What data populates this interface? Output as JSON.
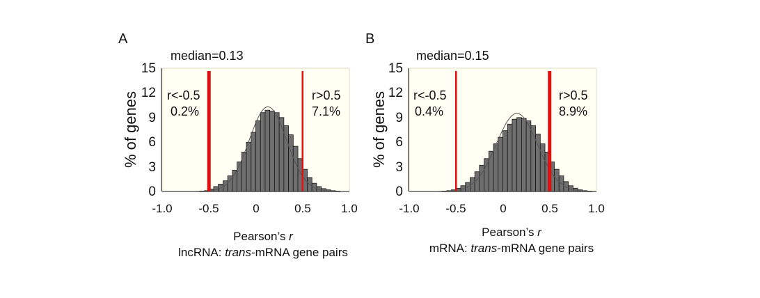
{
  "chart_data": [
    {
      "type": "bar",
      "panel_label": "A",
      "annotation": "median=0.13",
      "xlabel": "Pearson’s r",
      "xlabel_parts": [
        "Pearson’s ",
        "r"
      ],
      "subtitle_parts": [
        "lncRNA: ",
        "trans",
        "-mRNA gene pairs"
      ],
      "ylabel": "% of genes",
      "xlim": [
        -1.0,
        1.0
      ],
      "ylim": [
        0,
        15
      ],
      "xticks": [
        "-1.0",
        "-0.5",
        "0",
        "0.5",
        "1.0"
      ],
      "yticks": [
        "0",
        "3",
        "6",
        "9",
        "12",
        "15"
      ],
      "bin_width": 0.05,
      "bin_starts": [
        -0.95,
        -0.9,
        -0.85,
        -0.8,
        -0.75,
        -0.7,
        -0.65,
        -0.6,
        -0.55,
        -0.5,
        -0.45,
        -0.4,
        -0.35,
        -0.3,
        -0.25,
        -0.2,
        -0.15,
        -0.1,
        -0.05,
        0.0,
        0.05,
        0.1,
        0.15,
        0.2,
        0.25,
        0.3,
        0.35,
        0.4,
        0.45,
        0.5,
        0.55,
        0.6,
        0.65,
        0.7,
        0.75,
        0.8,
        0.85,
        0.9
      ],
      "values": [
        0.0,
        0.0,
        0.0,
        0.0,
        0.0,
        0.0,
        0.0,
        0.05,
        0.1,
        0.3,
        0.6,
        0.9,
        1.3,
        1.9,
        2.6,
        3.6,
        4.8,
        6.0,
        7.2,
        8.6,
        9.6,
        9.9,
        9.8,
        9.6,
        9.0,
        8.0,
        6.9,
        5.5,
        4.0,
        2.7,
        1.7,
        1.0,
        0.6,
        0.35,
        0.2,
        0.1,
        0.05,
        0.0
      ],
      "fit_curve": {
        "mean": 0.13,
        "sd": 0.2,
        "peak": 10.3
      },
      "thresholds": [
        {
          "x": -0.5,
          "label": "r<-0.5",
          "percent": "0.2%",
          "side": "left",
          "weight": "thick"
        },
        {
          "x": 0.5,
          "label": "r>0.5",
          "percent": "7.1%",
          "side": "right",
          "weight": "thin"
        }
      ],
      "colors": {
        "bar": "#6e6e6e",
        "threshold": "#e01010",
        "plot_bg": "#fffff4",
        "curve": "#555555"
      }
    },
    {
      "type": "bar",
      "panel_label": "B",
      "annotation": "median=0.15",
      "xlabel": "Pearson’s r",
      "xlabel_parts": [
        "Pearson’s ",
        "r"
      ],
      "subtitle_parts": [
        "mRNA: ",
        "trans",
        "-mRNA gene pairs"
      ],
      "ylabel": "% of genes",
      "xlim": [
        -1.0,
        1.0
      ],
      "ylim": [
        0,
        15
      ],
      "xticks": [
        "-1.0",
        "-0.5",
        "0",
        "0.5",
        "1.0"
      ],
      "yticks": [
        "0",
        "3",
        "6",
        "9",
        "12",
        "15"
      ],
      "bin_width": 0.05,
      "bin_starts": [
        -0.95,
        -0.9,
        -0.85,
        -0.8,
        -0.75,
        -0.7,
        -0.65,
        -0.6,
        -0.55,
        -0.5,
        -0.45,
        -0.4,
        -0.35,
        -0.3,
        -0.25,
        -0.2,
        -0.15,
        -0.1,
        -0.05,
        0.0,
        0.05,
        0.1,
        0.15,
        0.2,
        0.25,
        0.3,
        0.35,
        0.4,
        0.45,
        0.5,
        0.55,
        0.6,
        0.65,
        0.7,
        0.75,
        0.8,
        0.85,
        0.9
      ],
      "values": [
        0.0,
        0.0,
        0.0,
        0.0,
        0.0,
        0.0,
        0.05,
        0.1,
        0.2,
        0.4,
        0.7,
        1.1,
        1.7,
        2.4,
        3.2,
        4.0,
        4.9,
        5.8,
        6.6,
        7.4,
        8.2,
        8.8,
        9.0,
        8.9,
        8.6,
        8.0,
        7.0,
        5.8,
        4.8,
        3.6,
        2.7,
        1.9,
        1.2,
        0.7,
        0.4,
        0.2,
        0.1,
        0.05
      ],
      "fit_curve": {
        "mean": 0.15,
        "sd": 0.22,
        "peak": 9.5
      },
      "thresholds": [
        {
          "x": -0.5,
          "label": "r<-0.5",
          "percent": "0.4%",
          "side": "left",
          "weight": "thin"
        },
        {
          "x": 0.5,
          "label": "r>0.5",
          "percent": "8.9%",
          "side": "right",
          "weight": "thick"
        }
      ],
      "colors": {
        "bar": "#6e6e6e",
        "threshold": "#e01010",
        "plot_bg": "#fffff4",
        "curve": "#555555"
      }
    }
  ]
}
